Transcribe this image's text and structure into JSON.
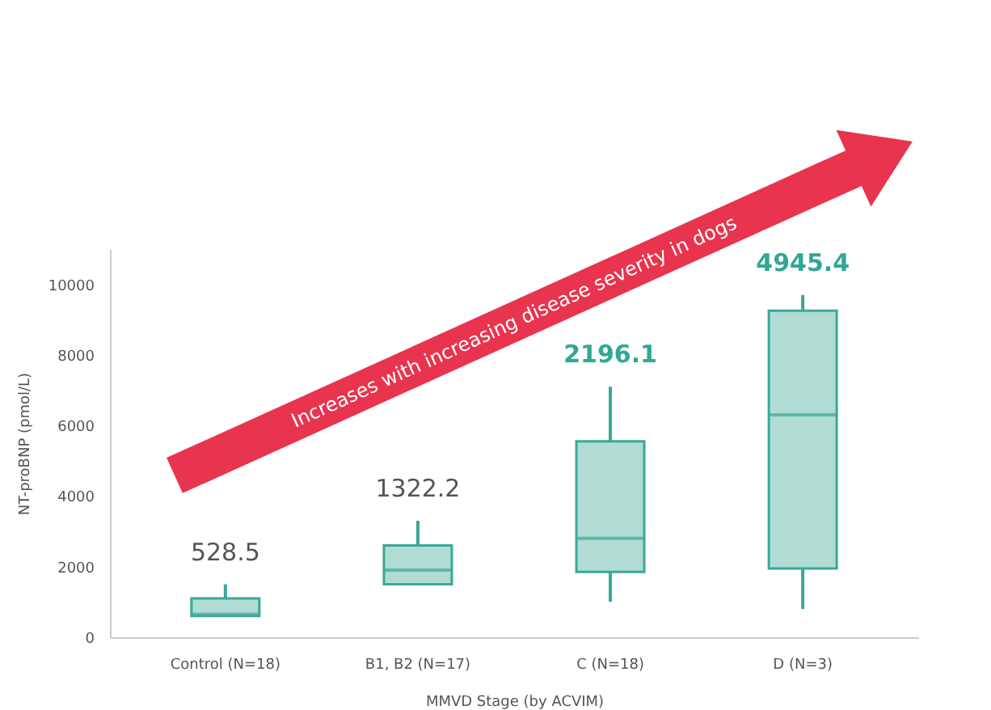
{
  "chart_data": {
    "type": "box",
    "xlabel": "MMVD Stage (by ACVIM)",
    "ylabel": "NT-proBNP (pmol/L)",
    "categories": [
      "Control (N=18)",
      "B1, B2 (N=17)",
      "C (N=18)",
      "D (N=3)"
    ],
    "boxes": [
      {
        "low": 600,
        "q1": 600,
        "median": 650,
        "q3": 1100,
        "high": 1500
      },
      {
        "low": 1500,
        "q1": 1500,
        "median": 1900,
        "q3": 2600,
        "high": 3300
      },
      {
        "low": 1000,
        "q1": 1850,
        "median": 2800,
        "q3": 5550,
        "high": 7100
      },
      {
        "low": 800,
        "q1": 1950,
        "median": 6300,
        "q3": 9250,
        "high": 9700
      }
    ],
    "color": "#3aa898",
    "ylim": [
      0,
      11000
    ],
    "yticks": [
      0,
      2000,
      4000,
      6000,
      8000,
      10000
    ],
    "grid": false,
    "annotations": [
      {
        "text": "528.5",
        "x": "Control (N=18)",
        "y": 1500
      },
      {
        "text": "1322.2",
        "x": "B1, B2 (N=17)",
        "y": 3300
      },
      {
        "text": "2196.1",
        "x": "C (N=18)",
        "y": 7100
      },
      {
        "text": "4945.4",
        "x": "D (N=3)",
        "y": 9700
      },
      "Increases with increasing disease severity in dogs"
    ]
  }
}
